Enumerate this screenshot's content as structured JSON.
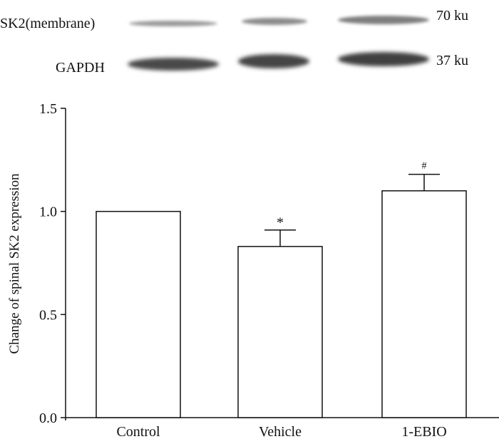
{
  "blot": {
    "rows": [
      {
        "label": "SK2(membrane)",
        "size": "70 ku"
      },
      {
        "label": "GAPDH",
        "size": "37 ku"
      }
    ]
  },
  "chart_data": {
    "type": "bar",
    "categories": [
      "Control",
      "Vehicle",
      "1-EBIO"
    ],
    "values": [
      1.0,
      0.83,
      1.1
    ],
    "errors": [
      0.0,
      0.08,
      0.08
    ],
    "significance": [
      "",
      "*",
      "#"
    ],
    "xlabel": "",
    "ylabel": "Change of spinal SK2 expression",
    "ylim": [
      0,
      1.5
    ],
    "yticks": [
      "0.0",
      "0.5",
      "1.0",
      "1.5"
    ],
    "grid": false,
    "bar_fill": "#ffffff",
    "bar_stroke": "#111111"
  }
}
